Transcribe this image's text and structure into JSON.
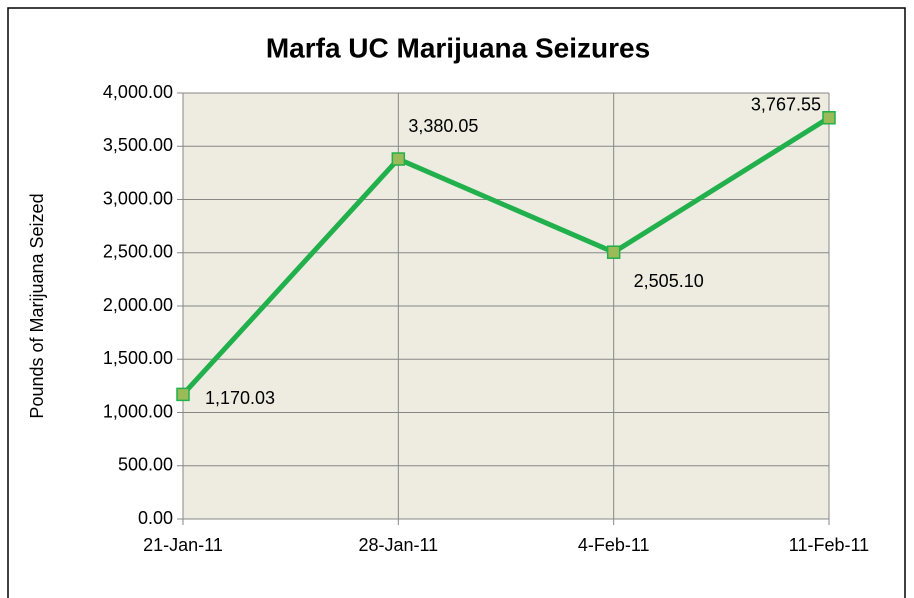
{
  "chart_data": {
    "type": "line",
    "title": "Marfa UC Marijuana Seizures",
    "y_label": "Pounds of Marijuana Seized",
    "categories": [
      "21-Jan-11",
      "28-Jan-11",
      "4-Feb-11",
      "11-Feb-11"
    ],
    "series": [
      {
        "name": "Pounds Seized",
        "color": "#21b04b",
        "marker_color": "#9bbb59",
        "values": [
          1170.03,
          3380.05,
          2505.1,
          3767.55
        ],
        "value_labels": [
          "1,170.03",
          "3,380.05",
          "2,505.10",
          "3,767.55"
        ]
      }
    ],
    "ylim": [
      0,
      4000
    ],
    "yticks": [
      {
        "value": 0,
        "label": "0.00"
      },
      {
        "value": 500,
        "label": "500.00"
      },
      {
        "value": 1000,
        "label": "1,000.00"
      },
      {
        "value": 1500,
        "label": "1,500.00"
      },
      {
        "value": 2000,
        "label": "2,000.00"
      },
      {
        "value": 2500,
        "label": "2,500.00"
      },
      {
        "value": 3000,
        "label": "3,000.00"
      },
      {
        "value": 3500,
        "label": "3,500.00"
      },
      {
        "value": 4000,
        "label": "4,000.00"
      }
    ],
    "grid": true,
    "legend": false
  }
}
